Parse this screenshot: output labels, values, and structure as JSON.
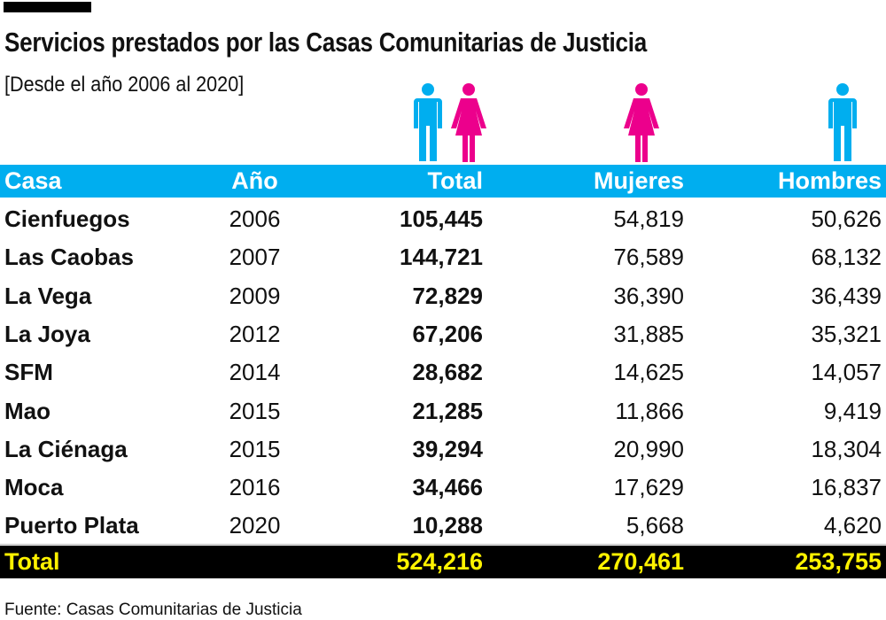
{
  "title": "Servicios prestados por las Casas Comunitarias de Justicia",
  "subtitle": "[Desde el año 2006 al 2020]",
  "source": "Fuente: Casas Comunitarias de Justicia",
  "colors": {
    "header_bg": "#00aeef",
    "male_icon": "#00aeef",
    "female_icon": "#ec008c",
    "total_bg": "#000000",
    "total_text": "#fff200"
  },
  "icons": {
    "total": [
      "man-icon",
      "woman-icon"
    ],
    "mujeres": "woman-icon",
    "hombres": "man-icon"
  },
  "chart_data": {
    "type": "table",
    "columns": [
      "Casa",
      "Año",
      "Total",
      "Mujeres",
      "Hombres"
    ],
    "rows": [
      [
        "Cienfuegos",
        "2006",
        "105,445",
        "54,819",
        "50,626"
      ],
      [
        "Las Caobas",
        "2007",
        "144,721",
        "76,589",
        "68,132"
      ],
      [
        "La Vega",
        "2009",
        "72,829",
        "36,390",
        "36,439"
      ],
      [
        "La Joya",
        "2012",
        "67,206",
        "31,885",
        "35,321"
      ],
      [
        "SFM",
        "2014",
        "28,682",
        "14,625",
        "14,057"
      ],
      [
        "Mao",
        "2015",
        "21,285",
        "11,866",
        "9,419"
      ],
      [
        "La Ciénaga",
        "2015",
        "39,294",
        "20,990",
        "18,304"
      ],
      [
        "Moca",
        "2016",
        "34,466",
        "17,629",
        "16,837"
      ],
      [
        "Puerto Plata",
        "2020",
        "10,288",
        "5,668",
        "4,620"
      ]
    ],
    "total": [
      "Total",
      "",
      "524,216",
      "270,461",
      "253,755"
    ]
  }
}
